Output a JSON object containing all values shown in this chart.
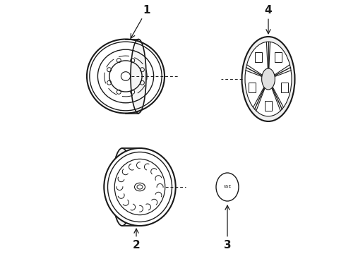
{
  "bg_color": "#ffffff",
  "line_color": "#1a1a1a",
  "label_fontsize": 11,
  "label_fontweight": "bold",
  "fig_width": 4.9,
  "fig_height": 3.6,
  "dpi": 100
}
